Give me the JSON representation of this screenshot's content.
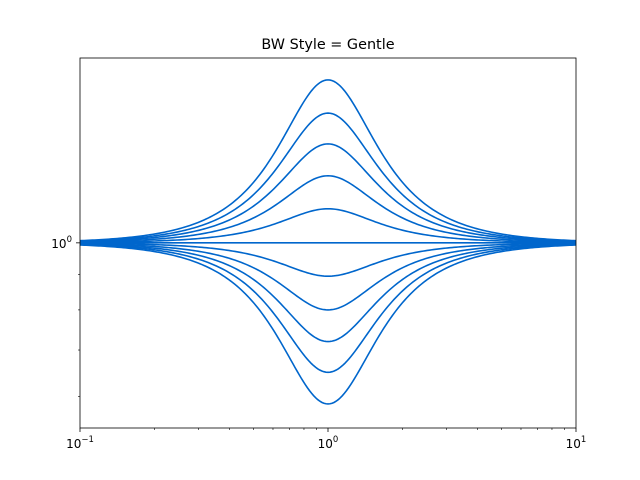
{
  "chart_data": {
    "type": "line",
    "title": "BW Style = Gentle",
    "xlabel": "",
    "ylabel": "",
    "xscale": "log",
    "yscale": "log",
    "xlim": [
      0.1,
      10
    ],
    "ylim": [
      0.54,
      1.85
    ],
    "grid": false,
    "legend": "none",
    "line_color": "#0066cc",
    "x_ticks": [
      {
        "value": 0.1,
        "base": "10",
        "exp": "−1"
      },
      {
        "value": 1,
        "base": "10",
        "exp": "0"
      },
      {
        "value": 10,
        "base": "10",
        "exp": "1"
      }
    ],
    "y_ticks": [
      {
        "value": 1,
        "base": "10",
        "exp": "0"
      }
    ],
    "curve_model": "gain(x) = peak ^ (1 / (1 + ((x - 1/x) / 1.15)^2))",
    "series": [
      {
        "peak": 1.72
      },
      {
        "peak": 1.54
      },
      {
        "peak": 1.39
      },
      {
        "peak": 1.25
      },
      {
        "peak": 1.12
      },
      {
        "peak": 1.0
      },
      {
        "peak": 0.895
      },
      {
        "peak": 0.8
      },
      {
        "peak": 0.72
      },
      {
        "peak": 0.65
      },
      {
        "peak": 0.585
      }
    ]
  }
}
